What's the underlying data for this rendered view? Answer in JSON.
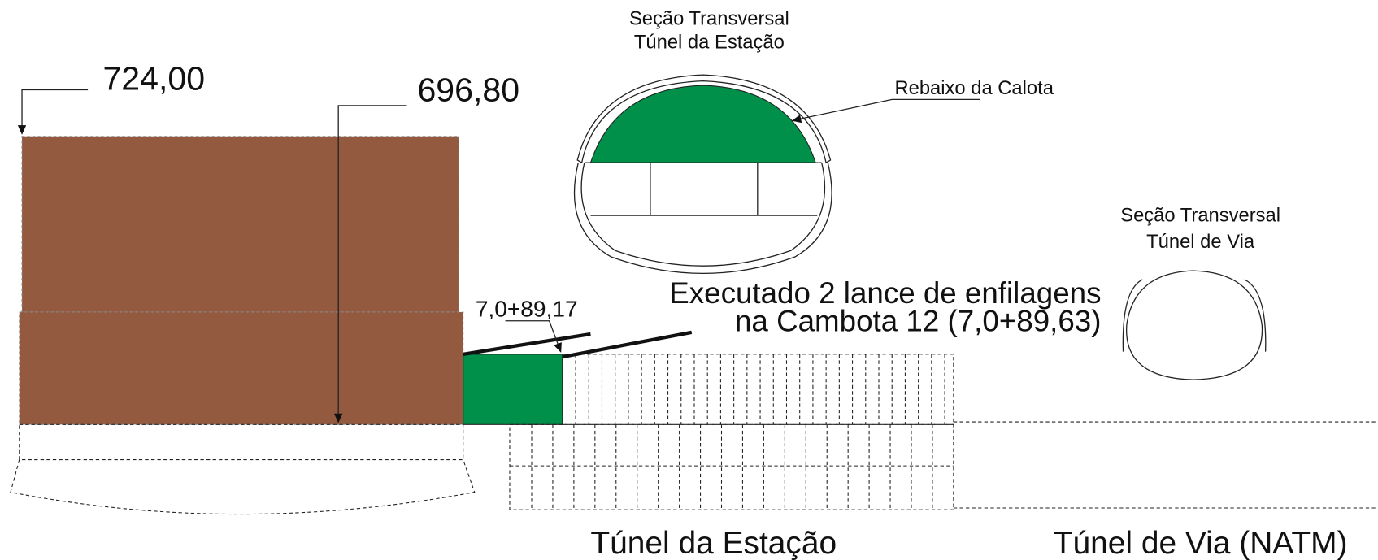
{
  "station_section": {
    "title": [
      "Seção Transversal",
      "Túnel da Estação"
    ],
    "callout": "Rebaixo da Calota"
  },
  "track_section": {
    "title": [
      "Seção Transversal",
      "Túnel de Via"
    ]
  },
  "levels": [
    "724,00",
    "696,80"
  ],
  "station_mark": "7,0+89,17",
  "note": [
    "Executado 2 lance de enfilagens",
    "na Cambota 12 (7,0+89,63)"
  ],
  "bottom_labels": [
    "Túnel da Estação",
    "Túnel de Via (NATM)"
  ]
}
